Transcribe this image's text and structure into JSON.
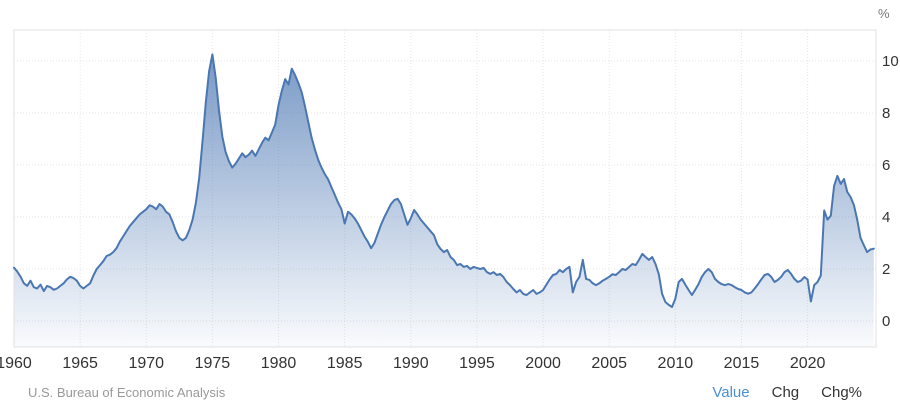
{
  "chart_data": {
    "type": "area",
    "title": "",
    "unit": "%",
    "x_start": 1960,
    "x_step": 0.25,
    "x_tick_years": [
      1960,
      1965,
      1970,
      1975,
      1980,
      1985,
      1990,
      1995,
      2000,
      2005,
      2010,
      2015,
      2020
    ],
    "x_tick_labels": [
      "1960",
      "1965",
      "1970",
      "1975",
      "1980",
      "1985",
      "1990",
      "1995",
      "2000",
      "2005",
      "2010",
      "2015",
      "2020"
    ],
    "y_ticks": [
      0,
      2,
      4,
      6,
      8,
      10
    ],
    "y_tick_labels": [
      "0",
      "2",
      "4",
      "6",
      "8",
      "10"
    ],
    "xlim": [
      1960,
      2025.17
    ],
    "ylim": [
      -1,
      11.19
    ],
    "grid": true,
    "legend": "none",
    "ylabel": "%",
    "xlabel": "",
    "values": [
      2.05,
      1.9,
      1.7,
      1.45,
      1.35,
      1.55,
      1.3,
      1.25,
      1.4,
      1.15,
      1.35,
      1.3,
      1.2,
      1.25,
      1.35,
      1.45,
      1.6,
      1.7,
      1.65,
      1.55,
      1.35,
      1.25,
      1.35,
      1.45,
      1.75,
      2.0,
      2.15,
      2.3,
      2.5,
      2.55,
      2.65,
      2.8,
      3.05,
      3.25,
      3.45,
      3.65,
      3.8,
      3.95,
      4.1,
      4.2,
      4.3,
      4.45,
      4.4,
      4.3,
      4.5,
      4.4,
      4.2,
      4.1,
      3.8,
      3.45,
      3.2,
      3.1,
      3.2,
      3.5,
      3.9,
      4.55,
      5.5,
      6.9,
      8.4,
      9.6,
      10.25,
      9.35,
      8.1,
      7.1,
      6.5,
      6.15,
      5.9,
      6.05,
      6.25,
      6.45,
      6.3,
      6.4,
      6.55,
      6.35,
      6.6,
      6.85,
      7.05,
      6.95,
      7.25,
      7.55,
      8.3,
      8.85,
      9.3,
      9.1,
      9.7,
      9.45,
      9.15,
      8.8,
      8.25,
      7.65,
      7.05,
      6.6,
      6.2,
      5.9,
      5.65,
      5.45,
      5.15,
      4.85,
      4.55,
      4.3,
      3.75,
      4.2,
      4.1,
      3.95,
      3.75,
      3.5,
      3.25,
      3.05,
      2.8,
      3.0,
      3.35,
      3.7,
      4.0,
      4.25,
      4.5,
      4.65,
      4.7,
      4.5,
      4.1,
      3.7,
      3.95,
      4.27,
      4.1,
      3.9,
      3.75,
      3.6,
      3.45,
      3.3,
      2.95,
      2.77,
      2.65,
      2.73,
      2.46,
      2.35,
      2.15,
      2.19,
      2.08,
      2.12,
      2.0,
      2.08,
      2.04,
      2.0,
      2.04,
      1.88,
      1.81,
      1.88,
      1.77,
      1.81,
      1.69,
      1.5,
      1.38,
      1.23,
      1.1,
      1.19,
      1.04,
      1.0,
      1.1,
      1.19,
      1.04,
      1.1,
      1.19,
      1.4,
      1.6,
      1.77,
      1.81,
      1.96,
      1.88,
      2.0,
      2.08,
      1.1,
      1.5,
      1.7,
      2.35,
      1.62,
      1.58,
      1.45,
      1.38,
      1.45,
      1.55,
      1.62,
      1.7,
      1.8,
      1.77,
      1.88,
      2.0,
      1.96,
      2.08,
      2.19,
      2.15,
      2.35,
      2.58,
      2.46,
      2.35,
      2.46,
      2.19,
      1.8,
      1.04,
      0.73,
      0.62,
      0.54,
      0.85,
      1.5,
      1.62,
      1.4,
      1.19,
      1.0,
      1.2,
      1.42,
      1.7,
      1.88,
      2.0,
      1.88,
      1.62,
      1.5,
      1.42,
      1.38,
      1.42,
      1.38,
      1.3,
      1.23,
      1.19,
      1.1,
      1.05,
      1.1,
      1.25,
      1.42,
      1.6,
      1.77,
      1.81,
      1.7,
      1.5,
      1.58,
      1.7,
      1.88,
      1.96,
      1.81,
      1.62,
      1.5,
      1.55,
      1.69,
      1.6,
      0.75,
      1.38,
      1.5,
      1.75,
      4.25,
      3.9,
      4.05,
      5.2,
      5.58,
      5.27,
      5.46,
      4.96,
      4.77,
      4.46,
      3.9,
      3.2,
      2.92,
      2.65,
      2.75,
      2.78
    ]
  },
  "header": {
    "unit_label": "%"
  },
  "footer": {
    "source": "U.S. Bureau of Economic Analysis",
    "tabs": [
      {
        "label": "Value",
        "active": true
      },
      {
        "label": "Chg",
        "active": false
      },
      {
        "label": "Chg%",
        "active": false
      }
    ]
  },
  "colors": {
    "line": "#4a76b2",
    "fill_top": "rgba(74,118,178,0.80)",
    "fill_bottom": "rgba(74,118,178,0.03)",
    "grid": "#e5e5e5",
    "border": "#e0e0e0",
    "tick_label": "#333333",
    "unit_label": "#777777",
    "source_text": "#999999",
    "active_tab": "#4a90d2",
    "tab": "#333333"
  }
}
